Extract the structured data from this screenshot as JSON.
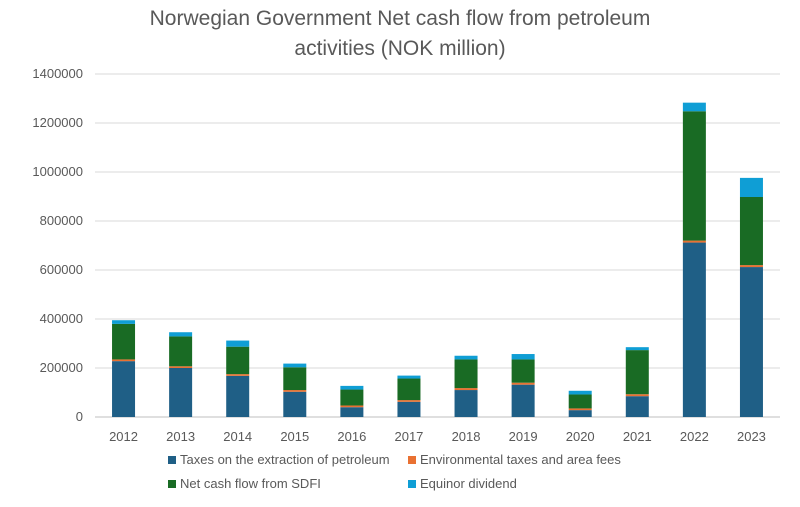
{
  "chart_data": {
    "type": "bar",
    "stacked": true,
    "title_line1": "Norwegian Government Net cash flow from petroleum",
    "title_line2": "activities (NOK million)",
    "xlabel": "",
    "ylabel": "",
    "ylim": [
      0,
      1400000
    ],
    "yticks": [
      "0",
      "200000",
      "400000",
      "600000",
      "800000",
      "1000000",
      "1200000",
      "1400000"
    ],
    "grid": true,
    "legend_position": "bottom",
    "categories": [
      "2012",
      "2013",
      "2014",
      "2015",
      "2016",
      "2017",
      "2018",
      "2019",
      "2020",
      "2021",
      "2022",
      "2023"
    ],
    "series": [
      {
        "name": "Taxes on the extraction of petroleum",
        "color": "#1f5f86",
        "values": [
          228000,
          200000,
          168000,
          103000,
          40000,
          62000,
          110000,
          132000,
          28000,
          85000,
          712000,
          612000
        ]
      },
      {
        "name": "Environmental taxes and area fees",
        "color": "#e97132",
        "values": [
          7000,
          7000,
          7000,
          7000,
          7000,
          7000,
          8000,
          8000,
          7000,
          8000,
          8000,
          8000
        ]
      },
      {
        "name": "Net cash flow from SDFI",
        "color": "#196b24",
        "values": [
          145000,
          122000,
          112000,
          93000,
          65000,
          88000,
          117000,
          95000,
          57000,
          180000,
          528000,
          278000
        ]
      },
      {
        "name": "Equinor dividend",
        "color": "#0f9ed5",
        "values": [
          15000,
          17000,
          25000,
          15000,
          15000,
          12000,
          15000,
          22000,
          15000,
          12000,
          35000,
          78000
        ]
      }
    ]
  }
}
